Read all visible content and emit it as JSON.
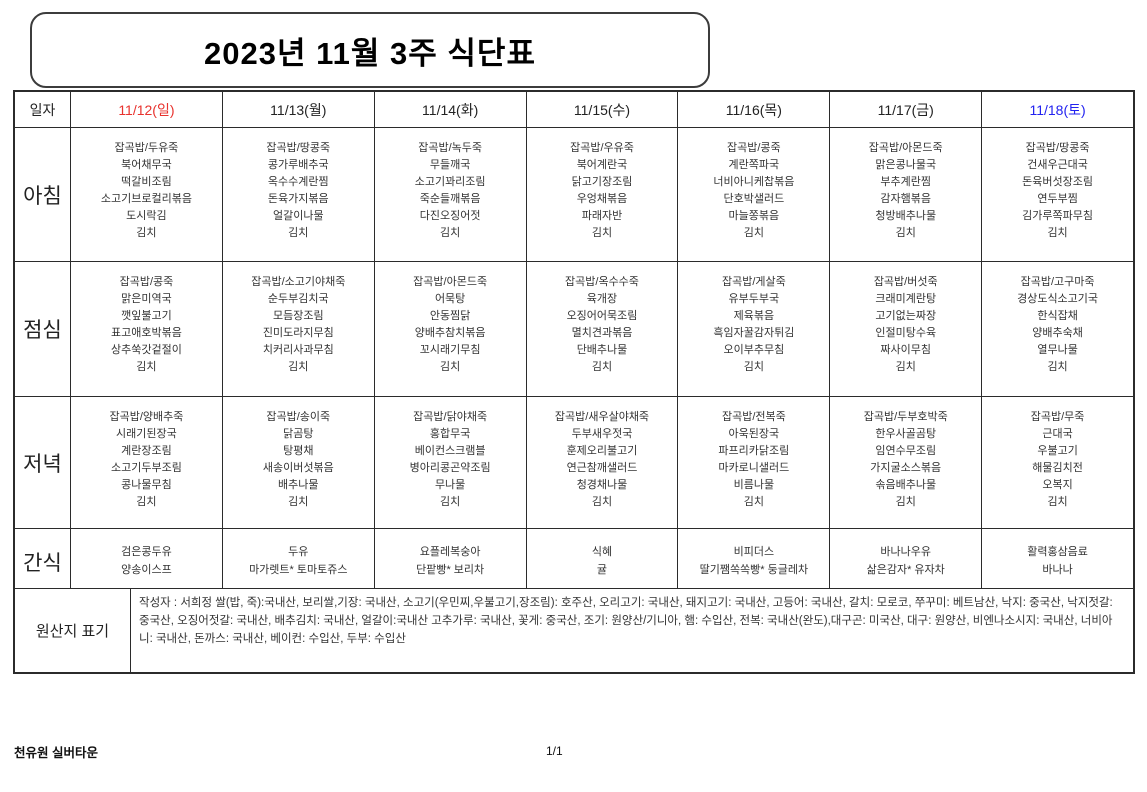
{
  "title": "2023년 11월 3주 식단표",
  "table": {
    "date_label": "일자",
    "days": [
      "11/12(일)",
      "11/13(월)",
      "11/14(화)",
      "11/15(수)",
      "11/16(목)",
      "11/17(금)",
      "11/18(토)"
    ],
    "day_colors": [
      "#e8322d",
      "#222222",
      "#222222",
      "#222222",
      "#222222",
      "#222222",
      "#2222f0"
    ],
    "accent_red": "#e8322d",
    "accent_blue": "#2222f0"
  },
  "meals": [
    {
      "label": "아침",
      "cells": [
        "잡곡밥/두유죽\n북어채무국\n떡갈비조림\n소고기브로컬리볶음\n도시락김\n김치",
        "잡곡밥/땅콩죽\n콩가루배추국\n옥수수계란찜\n돈육가지볶음\n얼갈이나물\n김치",
        "잡곡밥/녹두죽\n무들깨국\n소고기꽈리조림\n죽순들깨볶음\n다진오징어젓\n김치",
        "잡곡밥/우유죽\n북어계란국\n닭고기장조림\n우엉채볶음\n파래자반\n김치",
        "잡곡밥/콩죽\n계란쪽파국\n너비아니케찹볶음\n단호박샐러드\n마늘쫑볶음\n김치",
        "잡곡밥/아몬드죽\n맑은콩나물국\n부추계란찜\n감자햄볶음\n청방배추나물\n김치",
        "잡곡밥/땅콩죽\n건새우근대국\n돈육버섯장조림\n연두부찜\n김가루쪽파무침\n김치"
      ]
    },
    {
      "label": "점심",
      "cells": [
        "잡곡밥/콩죽\n맑은미역국\n깻잎불고기\n표고애호박볶음\n상추쑥갓겉절이\n김치",
        "잡곡밥/소고기야채죽\n순두부김치국\n모듬장조림\n진미도라지무침\n치커리사과무침\n김치",
        "잡곡밥/아몬드죽\n어묵탕\n안동찜닭\n양배추참치볶음\n꼬시래기무침\n김치",
        "잡곡밥/옥수수죽\n육개장\n오징어어묵조림\n멸치견과볶음\n단배추나물\n김치",
        "잡곡밥/게살죽\n유부두부국\n제육볶음\n흑임자꿀감자튀김\n오이부추무침\n김치",
        "잡곡밥/버섯죽\n크래미계란탕\n고기없는짜장\n인절미탕수육\n짜사이무침\n김치",
        "잡곡밥/고구마죽\n경상도식소고기국\n한식잡채\n양배추숙채\n열무나물\n김치"
      ]
    },
    {
      "label": "저녁",
      "cells": [
        "잡곡밥/양배추죽\n시래기된장국\n계란장조림\n소고기두부조림\n콩나물무침\n김치",
        "잡곡밥/송이죽\n닭곰탕\n탕평채\n새송이버섯볶음\n배추나물\n김치",
        "잡곡밥/닭야채죽\n홍합무국\n베이컨스크램블\n병아리콩곤약조림\n무나물\n김치",
        "잡곡밥/새우살야채죽\n두부새우젓국\n훈제오리불고기\n연근참깨샐러드\n청경채나물\n김치",
        "잡곡밥/전복죽\n아욱된장국\n파프리카닭조림\n마카로니샐러드\n비름나물\n김치",
        "잡곡밥/두부호박죽\n한우사골곰탕\n임연수무조림\n가지굴소스볶음\n솎음배추나물\n김치",
        "잡곡밥/무죽\n근대국\n우불고기\n해물김치전\n오복지\n김치"
      ]
    },
    {
      "label": "간식",
      "cells": [
        "검은콩두유\n양송이스프",
        "두유\n마가렛트* 토마토쥬스",
        "요플레복숭아\n단팥빵* 보리차",
        "식혜\n귤",
        "비피더스\n딸기쨈쏙쏙빵* 둥글레차",
        "바나나우유\n삶은감자* 유자차",
        "활력홍삼음료\n바나나"
      ]
    }
  ],
  "origin": {
    "label": "원산지 표기",
    "text": "작성자 : 서희정  쌀(밥, 죽):국내산, 보리쌀,기장: 국내산, 소고기(우민찌,우불고기,장조림): 호주산, 오리고기: 국내산, 돼지고기: 국내산, 고등어: 국내산, 갈치: 모로코, 쭈꾸미: 베트남산, 낙지: 중국산, 낙지젓갈: 중국산, 오징어젓갈: 국내산, 배추김치: 국내산, 얼갈이:국내산 고추가루: 국내산, 꽃게: 중국산, 조기: 원양산/기니아, 햄: 수입산, 전복: 국내산(완도),대구곤: 미국산, 대구: 원양산, 비엔나소시지: 국내산, 너비아니: 국내산, 돈까스: 국내산, 베이컨: 수입산, 두부: 수입산"
  },
  "footer": {
    "facility": "천유원 실버타운",
    "page": "1/1"
  }
}
